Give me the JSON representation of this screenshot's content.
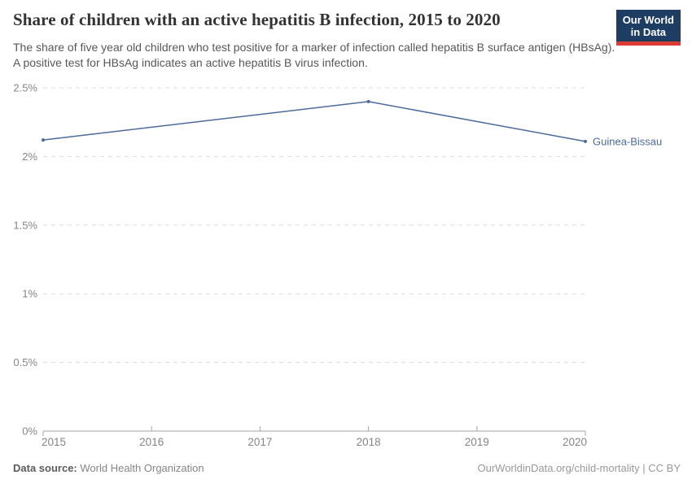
{
  "chart_data": {
    "type": "line",
    "title": "Share of children with an active hepatitis B infection, 2015 to 2020",
    "subtitle": "The share of five year old children who test positive for a marker of infection called hepatitis B surface antigen (HBsAg). A positive test for HBsAg indicates an active hepatitis B virus infection.",
    "xlabel": "",
    "ylabel": "",
    "xlim": [
      2015,
      2020
    ],
    "ylim": [
      0,
      2.5
    ],
    "xticks": [
      2015,
      2016,
      2017,
      2018,
      2019,
      2020
    ],
    "yticks": [
      {
        "value": 0,
        "label": "0%"
      },
      {
        "value": 0.5,
        "label": "0.5%"
      },
      {
        "value": 1,
        "label": "1%"
      },
      {
        "value": 1.5,
        "label": "1.5%"
      },
      {
        "value": 2,
        "label": "2%"
      },
      {
        "value": 2.5,
        "label": "2.5%"
      }
    ],
    "grid": "horizontal-dashed",
    "legend_position": "end-of-line-label",
    "series": [
      {
        "name": "Guinea-Bissau",
        "color": "#4C6A9C",
        "points": [
          {
            "year": 2015,
            "value": 2.12
          },
          {
            "year": 2018,
            "value": 2.4
          },
          {
            "year": 2020,
            "value": 2.11
          }
        ]
      }
    ]
  },
  "logo": {
    "line1": "Our World",
    "line2": "in Data",
    "background": "#1d3d63",
    "accent": "#dc3b33"
  },
  "footer": {
    "datasource_label": "Data source:",
    "datasource_value": "World Health Organization",
    "attribution": "OurWorldinData.org/child-mortality | CC BY"
  },
  "colors": {
    "line": "#4C6A9C",
    "grid": "#dcdcdc",
    "axis": "#a6a6a6",
    "tick_label": "#858585",
    "title": "#333333",
    "subtitle": "#575757"
  }
}
